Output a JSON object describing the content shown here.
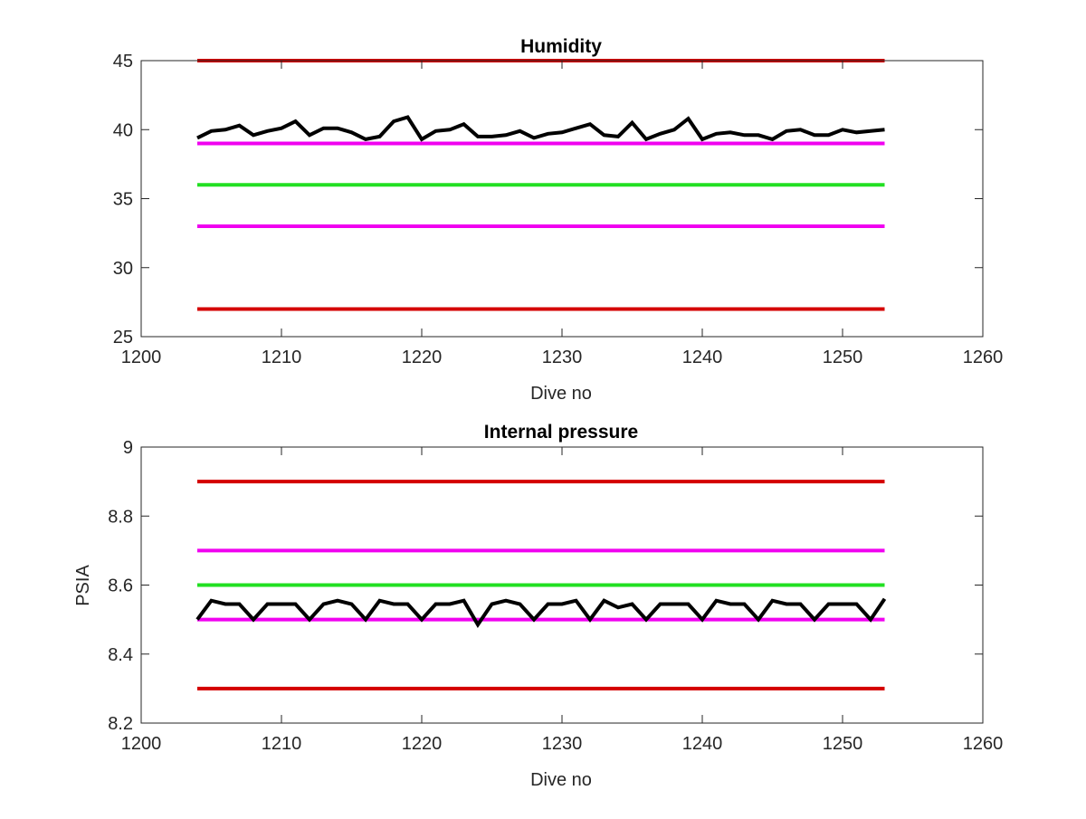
{
  "figure": {
    "background": "#ffffff",
    "axes_color": "#262626"
  },
  "chart_data": [
    {
      "type": "line",
      "title": "Humidity",
      "xlabel": "Dive no",
      "ylabel": "",
      "xlim": [
        1200,
        1260
      ],
      "ylim": [
        25,
        45
      ],
      "xticks": [
        1200,
        1210,
        1220,
        1230,
        1240,
        1250,
        1260
      ],
      "yticks": [
        25,
        30,
        35,
        40,
        45
      ],
      "grid": false,
      "series": [
        {
          "color": "#d40000",
          "x": [
            1204,
            1253
          ],
          "y": [
            45,
            45
          ]
        },
        {
          "color": "#f000f0",
          "x": [
            1204,
            1253
          ],
          "y": [
            39,
            39
          ]
        },
        {
          "color": "#22e022",
          "x": [
            1204,
            1253
          ],
          "y": [
            36,
            36
          ]
        },
        {
          "color": "#f000f0",
          "x": [
            1204,
            1253
          ],
          "y": [
            33,
            33
          ]
        },
        {
          "color": "#d40000",
          "x": [
            1204,
            1253
          ],
          "y": [
            27,
            27
          ]
        },
        {
          "color": "#000000",
          "x": [
            1204,
            1205,
            1206,
            1207,
            1208,
            1209,
            1210,
            1211,
            1212,
            1213,
            1214,
            1215,
            1216,
            1217,
            1218,
            1219,
            1220,
            1221,
            1222,
            1223,
            1224,
            1225,
            1226,
            1227,
            1228,
            1229,
            1230,
            1231,
            1232,
            1233,
            1234,
            1235,
            1236,
            1237,
            1238,
            1239,
            1240,
            1241,
            1242,
            1243,
            1244,
            1245,
            1246,
            1247,
            1248,
            1249,
            1250,
            1251,
            1252,
            1253
          ],
          "y": [
            39.4,
            39.9,
            40.0,
            40.3,
            39.6,
            39.9,
            40.1,
            40.6,
            39.6,
            40.1,
            40.1,
            39.8,
            39.3,
            39.5,
            40.6,
            40.9,
            39.3,
            39.9,
            40.0,
            40.4,
            39.5,
            39.5,
            39.6,
            39.9,
            39.4,
            39.7,
            39.8,
            40.1,
            40.4,
            39.6,
            39.5,
            40.5,
            39.3,
            39.7,
            40.0,
            40.8,
            39.3,
            39.7,
            39.8,
            39.6,
            39.6,
            39.3,
            39.9,
            40.0,
            39.6,
            39.6,
            40.0,
            39.8,
            39.9,
            40.0
          ]
        }
      ]
    },
    {
      "type": "line",
      "title": "Internal pressure",
      "xlabel": "Dive no",
      "ylabel": "PSIA",
      "xlim": [
        1200,
        1260
      ],
      "ylim": [
        8.2,
        9.0
      ],
      "xticks": [
        1200,
        1210,
        1220,
        1230,
        1240,
        1250,
        1260
      ],
      "yticks": [
        8.2,
        8.4,
        8.6,
        8.8,
        9
      ],
      "grid": false,
      "series": [
        {
          "color": "#d40000",
          "x": [
            1204,
            1253
          ],
          "y": [
            8.9,
            8.9
          ]
        },
        {
          "color": "#f000f0",
          "x": [
            1204,
            1253
          ],
          "y": [
            8.7,
            8.7
          ]
        },
        {
          "color": "#22e022",
          "x": [
            1204,
            1253
          ],
          "y": [
            8.6,
            8.6
          ]
        },
        {
          "color": "#f000f0",
          "x": [
            1204,
            1253
          ],
          "y": [
            8.5,
            8.5
          ]
        },
        {
          "color": "#d40000",
          "x": [
            1204,
            1253
          ],
          "y": [
            8.3,
            8.3
          ]
        },
        {
          "color": "#000000",
          "x": [
            1204,
            1205,
            1206,
            1207,
            1208,
            1209,
            1210,
            1211,
            1212,
            1213,
            1214,
            1215,
            1216,
            1217,
            1218,
            1219,
            1220,
            1221,
            1222,
            1223,
            1224,
            1225,
            1226,
            1227,
            1228,
            1229,
            1230,
            1231,
            1232,
            1233,
            1234,
            1235,
            1236,
            1237,
            1238,
            1239,
            1240,
            1241,
            1242,
            1243,
            1244,
            1245,
            1246,
            1247,
            1248,
            1249,
            1250,
            1251,
            1252,
            1253
          ],
          "y": [
            8.5,
            8.555,
            8.545,
            8.545,
            8.5,
            8.545,
            8.545,
            8.545,
            8.5,
            8.545,
            8.555,
            8.545,
            8.5,
            8.555,
            8.545,
            8.545,
            8.5,
            8.545,
            8.545,
            8.555,
            8.485,
            8.545,
            8.555,
            8.545,
            8.5,
            8.545,
            8.545,
            8.555,
            8.5,
            8.555,
            8.535,
            8.545,
            8.5,
            8.545,
            8.545,
            8.545,
            8.5,
            8.555,
            8.545,
            8.545,
            8.5,
            8.555,
            8.545,
            8.545,
            8.5,
            8.545,
            8.545,
            8.545,
            8.5,
            8.56
          ]
        }
      ]
    }
  ]
}
